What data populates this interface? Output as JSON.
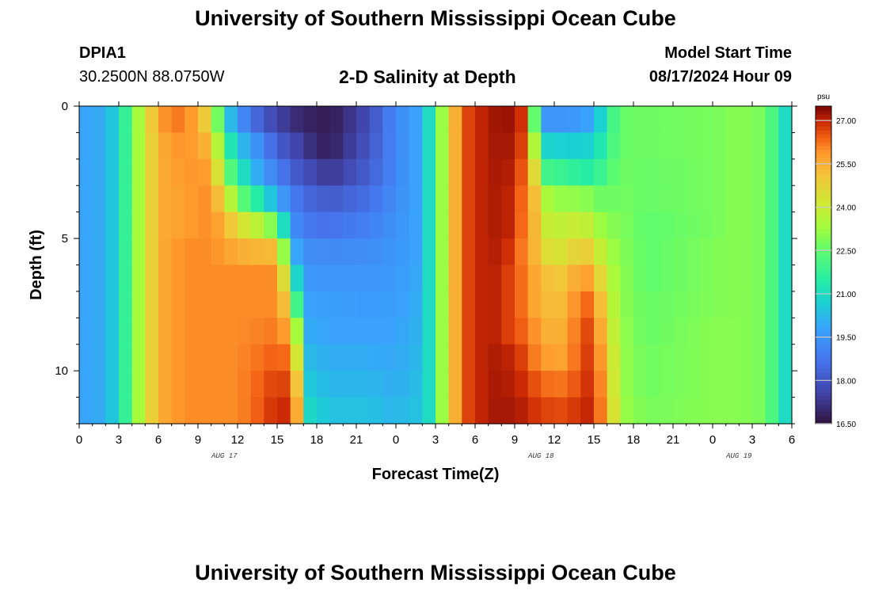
{
  "header": {
    "title": "University of Southern Mississippi Ocean Cube",
    "title_repeat": "University of Southern Mississippi Ocean Cube",
    "station": "DPIA1",
    "coords": "30.2500N  88.0750W",
    "subtitle": "2-D Salinity at Depth",
    "model_label": "Model Start Time",
    "model_time": "08/17/2024 Hour 09"
  },
  "chart_data": {
    "type": "heatmap",
    "title": "2-D Salinity at Depth",
    "xlabel": "Forecast Time(Z)",
    "ylabel": "Depth (ft)",
    "x_range_hours": [
      0,
      54
    ],
    "y_range_ft": [
      0,
      12
    ],
    "x_ticks": [
      "0",
      "3",
      "6",
      "9",
      "12",
      "15",
      "18",
      "21",
      "0",
      "3",
      "6",
      "9",
      "12",
      "15",
      "18",
      "21",
      "0",
      "3",
      "6"
    ],
    "y_ticks": [
      "0",
      "5",
      "10"
    ],
    "date_labels": [
      {
        "hour": 11,
        "text": "AUG 17"
      },
      {
        "hour": 35,
        "text": "AUG 18"
      },
      {
        "hour": 50,
        "text": "AUG 19"
      }
    ],
    "colorbar": {
      "unit": "psu",
      "min": 16.5,
      "max": 27.5,
      "ticks": [
        "27.00",
        "25.50",
        "24.00",
        "22.50",
        "21.00",
        "19.50",
        "18.00",
        "16.50"
      ],
      "tick_values": [
        27.0,
        25.5,
        24.0,
        22.5,
        21.0,
        19.5,
        18.0,
        16.5
      ]
    },
    "depth_levels_ft": [
      0.5,
      1.5,
      2.5,
      3.5,
      4.5,
      5.5,
      6.5,
      7.5,
      8.5,
      9.5,
      10.5,
      11.5
    ],
    "time_hours_start": 0,
    "time_hours_end": 54,
    "hourly_profile_nodes": [
      {
        "h": 0,
        "col": [
          19.8,
          19.8,
          19.8,
          19.8,
          19.8,
          19.8,
          19.8,
          19.8,
          19.8,
          19.8,
          19.8,
          19.8
        ]
      },
      {
        "h": 2,
        "col": [
          20.0,
          20.0,
          20.0,
          20.0,
          20.0,
          20.0,
          20.0,
          20.0,
          20.0,
          20.0,
          20.0,
          20.0
        ]
      },
      {
        "h": 3,
        "col": [
          21.0,
          21.0,
          21.0,
          21.0,
          21.0,
          21.0,
          21.0,
          21.0,
          21.0,
          21.0,
          21.0,
          21.0
        ]
      },
      {
        "h": 4,
        "col": [
          22.5,
          22.5,
          22.5,
          22.5,
          22.5,
          22.5,
          22.5,
          22.5,
          22.5,
          22.5,
          22.5,
          22.5
        ]
      },
      {
        "h": 5,
        "col": [
          24.2,
          24.2,
          24.2,
          24.2,
          24.2,
          24.2,
          24.2,
          24.2,
          24.2,
          24.2,
          24.2,
          24.2
        ]
      },
      {
        "h": 6,
        "col": [
          25.8,
          25.5,
          25.5,
          25.5,
          25.5,
          25.5,
          25.5,
          25.5,
          25.5,
          25.5,
          25.5,
          25.5
        ]
      },
      {
        "h": 8,
        "col": [
          26.3,
          26.0,
          25.9,
          25.8,
          25.8,
          26.0,
          26.0,
          26.0,
          26.0,
          26.0,
          26.0,
          26.0
        ]
      },
      {
        "h": 10,
        "col": [
          24.5,
          25.3,
          25.8,
          26.0,
          26.0,
          26.0,
          26.0,
          26.0,
          26.0,
          26.0,
          26.0,
          26.0
        ]
      },
      {
        "h": 11,
        "col": [
          21.0,
          22.0,
          23.0,
          24.5,
          25.5,
          25.8,
          26.0,
          26.0,
          26.0,
          26.0,
          26.0,
          26.0
        ]
      },
      {
        "h": 12,
        "col": [
          19.5,
          20.5,
          21.5,
          22.8,
          24.5,
          25.5,
          26.0,
          26.0,
          26.0,
          26.0,
          26.0,
          26.0
        ]
      },
      {
        "h": 14,
        "col": [
          18.0,
          19.0,
          19.5,
          21.0,
          23.5,
          25.3,
          26.0,
          26.0,
          26.1,
          26.3,
          26.5,
          26.6
        ]
      },
      {
        "h": 15,
        "col": [
          17.6,
          18.2,
          19.0,
          20.0,
          22.5,
          25.3,
          26.0,
          26.0,
          26.2,
          26.5,
          26.8,
          27.0
        ]
      },
      {
        "h": 16,
        "col": [
          17.2,
          17.8,
          18.3,
          19.0,
          19.6,
          21.0,
          23.0,
          24.5,
          25.5,
          26.2,
          26.6,
          26.9
        ]
      },
      {
        "h": 16.7,
        "col": [
          17.0,
          17.5,
          18.0,
          18.6,
          19.0,
          19.4,
          20.0,
          21.0,
          22.5,
          23.5,
          24.5,
          25.0
        ]
      },
      {
        "h": 17.3,
        "col": [
          16.9,
          17.2,
          17.8,
          18.4,
          18.8,
          19.3,
          19.6,
          19.8,
          20.0,
          20.3,
          20.6,
          21.0
        ]
      },
      {
        "h": 19,
        "col": [
          16.7,
          16.8,
          17.3,
          18.1,
          18.6,
          19.2,
          19.5,
          19.7,
          19.8,
          20.0,
          20.2,
          20.4
        ]
      },
      {
        "h": 22,
        "col": [
          17.8,
          18.0,
          18.2,
          18.6,
          19.0,
          19.3,
          19.5,
          19.6,
          19.8,
          20.0,
          20.2,
          20.4
        ]
      },
      {
        "h": 24,
        "col": [
          19.2,
          19.2,
          19.2,
          19.3,
          19.4,
          19.5,
          19.6,
          19.7,
          19.8,
          19.9,
          20.0,
          20.2
        ]
      },
      {
        "h": 25.5,
        "col": [
          19.8,
          19.8,
          19.8,
          19.8,
          19.8,
          19.8,
          19.9,
          20.0,
          20.1,
          20.2,
          20.3,
          20.4
        ]
      },
      {
        "h": 26.5,
        "col": [
          21.0,
          21.0,
          21.0,
          21.0,
          21.0,
          21.0,
          21.0,
          21.0,
          21.0,
          21.0,
          21.0,
          21.0
        ]
      },
      {
        "h": 27.5,
        "col": [
          23.2,
          23.2,
          23.2,
          23.2,
          23.2,
          23.2,
          23.2,
          23.2,
          23.2,
          23.2,
          23.2,
          23.2
        ]
      },
      {
        "h": 28.5,
        "col": [
          25.5,
          25.5,
          25.5,
          25.5,
          25.5,
          25.5,
          25.5,
          25.5,
          25.5,
          25.5,
          25.5,
          25.5
        ]
      },
      {
        "h": 29.5,
        "col": [
          26.7,
          26.7,
          26.7,
          26.7,
          26.7,
          26.7,
          26.7,
          26.7,
          26.7,
          26.7,
          26.7,
          26.7
        ]
      },
      {
        "h": 31,
        "col": [
          27.2,
          27.2,
          27.2,
          27.2,
          27.2,
          27.2,
          27.2,
          27.2,
          27.2,
          27.2,
          27.2,
          27.2
        ]
      },
      {
        "h": 33,
        "col": [
          27.3,
          27.2,
          27.1,
          27.0,
          27.0,
          26.8,
          26.6,
          26.6,
          26.6,
          27.0,
          27.1,
          27.2
        ]
      },
      {
        "h": 34,
        "col": [
          26.5,
          26.3,
          26.0,
          25.8,
          25.7,
          25.6,
          26.0,
          26.0,
          26.3,
          26.5,
          26.8,
          27.0
        ]
      },
      {
        "h": 34.7,
        "col": [
          21.0,
          22.5,
          24.0,
          25.0,
          25.2,
          25.3,
          25.5,
          25.5,
          25.8,
          26.0,
          26.5,
          26.8
        ]
      },
      {
        "h": 35.3,
        "col": [
          19.5,
          20.8,
          22.0,
          23.5,
          24.0,
          24.5,
          25.2,
          25.3,
          25.5,
          25.8,
          26.3,
          26.7
        ]
      },
      {
        "h": 37,
        "col": [
          19.5,
          20.7,
          21.8,
          23.0,
          23.8,
          24.3,
          25.0,
          25.3,
          25.5,
          25.7,
          26.2,
          26.6
        ]
      },
      {
        "h": 38,
        "col": [
          19.6,
          20.7,
          21.5,
          23.2,
          24.2,
          25.2,
          26.0,
          26.5,
          26.7,
          26.7,
          26.8,
          27.0
        ]
      },
      {
        "h": 39,
        "col": [
          20.0,
          20.8,
          21.5,
          22.8,
          23.5,
          24.5,
          25.5,
          26.2,
          26.6,
          26.8,
          26.9,
          27.0
        ]
      },
      {
        "h": 40,
        "col": [
          21.5,
          21.8,
          22.2,
          22.6,
          23.0,
          23.4,
          23.8,
          24.2,
          24.6,
          25.0,
          25.2,
          25.4
        ]
      },
      {
        "h": 41,
        "col": [
          22.6,
          22.6,
          22.7,
          22.8,
          22.9,
          23.0,
          23.1,
          23.1,
          23.2,
          23.2,
          23.2,
          23.3
        ]
      },
      {
        "h": 43,
        "col": [
          22.7,
          22.7,
          22.6,
          22.6,
          22.5,
          22.5,
          22.5,
          22.6,
          22.6,
          22.7,
          22.7,
          22.8
        ]
      },
      {
        "h": 48,
        "col": [
          22.8,
          22.8,
          22.8,
          22.8,
          22.8,
          22.9,
          22.9,
          22.9,
          23.0,
          23.0,
          23.0,
          23.0
        ]
      },
      {
        "h": 50,
        "col": [
          23.0,
          23.0,
          23.0,
          23.0,
          23.0,
          23.0,
          23.0,
          23.0,
          23.0,
          23.0,
          23.0,
          23.0
        ]
      },
      {
        "h": 52,
        "col": [
          22.8,
          22.8,
          22.8,
          22.8,
          22.8,
          22.8,
          22.8,
          22.8,
          22.8,
          22.8,
          22.8,
          22.8
        ]
      },
      {
        "h": 53,
        "col": [
          21.5,
          21.5,
          21.5,
          21.5,
          21.5,
          21.5,
          21.5,
          21.5,
          21.5,
          21.5,
          21.5,
          21.5
        ]
      },
      {
        "h": 54,
        "col": [
          20.5,
          20.5,
          20.5,
          20.5,
          20.5,
          20.5,
          20.5,
          20.5,
          20.5,
          20.5,
          20.5,
          20.5
        ]
      }
    ]
  }
}
